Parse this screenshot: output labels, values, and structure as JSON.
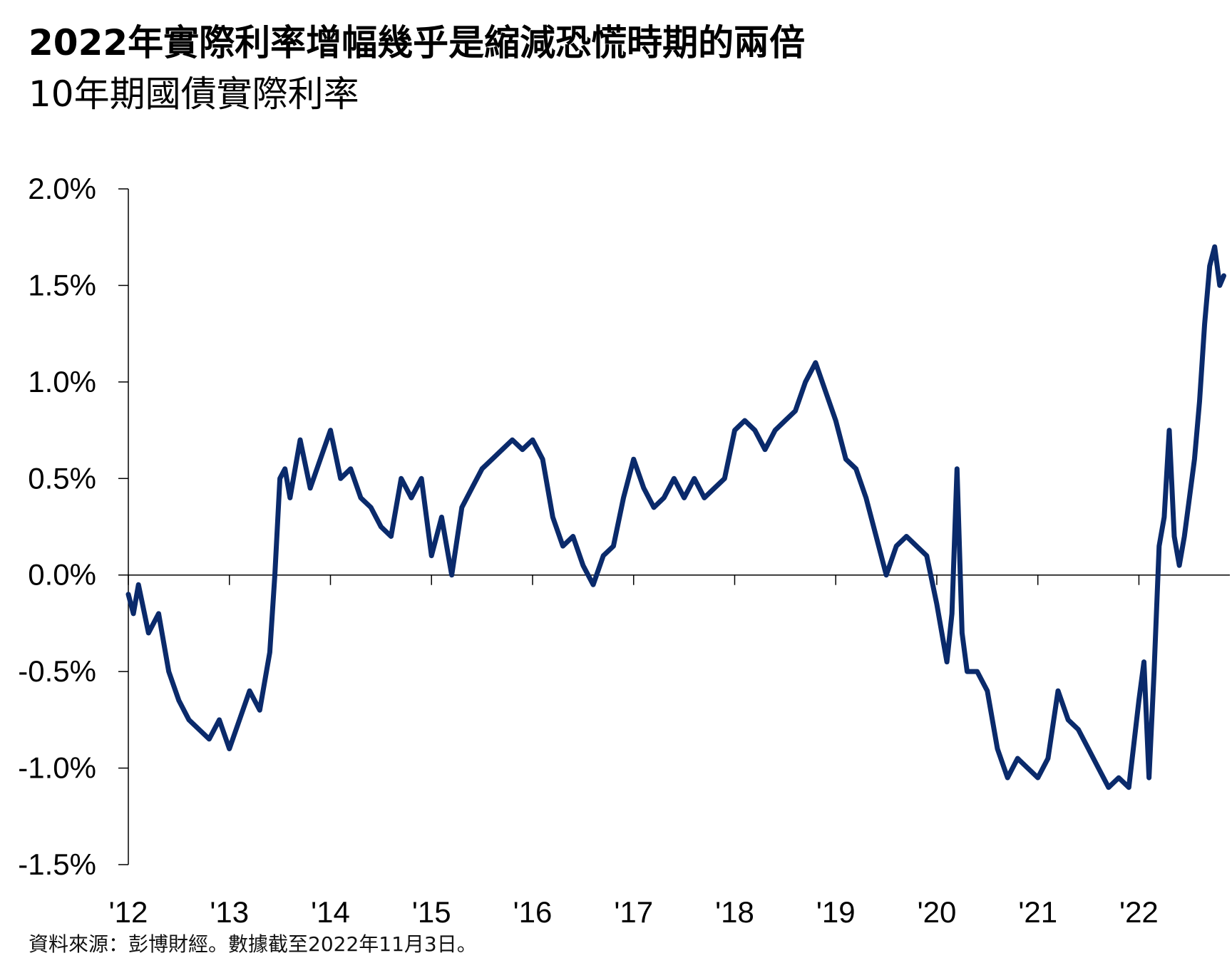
{
  "title": "2022年實際利率增幅幾乎是縮減恐慌時期的兩倍",
  "subtitle": "10年期國債實際利率",
  "source": "資料來源：彭博財經。數據截至2022年11月3日。",
  "colors": {
    "line": "#0a2a6b",
    "axis": "#000000"
  },
  "chart_data": {
    "type": "line",
    "title": "2022年實際利率增幅幾乎是縮減恐慌時期的兩倍",
    "subtitle": "10年期國債實際利率",
    "ylabel": "",
    "xlabel": "",
    "ylim": [
      -1.5,
      2.0
    ],
    "xlim": [
      2012.0,
      2022.9
    ],
    "y_ticks": [
      2.0,
      1.5,
      1.0,
      0.5,
      0.0,
      -0.5,
      -1.0,
      -1.5
    ],
    "y_tick_labels": [
      "2.0%",
      "1.5%",
      "1.0%",
      "0.5%",
      "0.0%",
      "-0.5%",
      "-1.0%",
      "-1.5%"
    ],
    "x_ticks": [
      2012,
      2013,
      2014,
      2015,
      2016,
      2017,
      2018,
      2019,
      2020,
      2021,
      2022
    ],
    "x_tick_labels": [
      "'12",
      "'13",
      "'14",
      "'15",
      "'16",
      "'17",
      "'18",
      "'19",
      "'20",
      "'21",
      "'22"
    ],
    "grid": false,
    "legend": "none",
    "series": [
      {
        "x": [
          2012.0,
          2012.05,
          2012.1,
          2012.2,
          2012.3,
          2012.4,
          2012.5,
          2012.6,
          2012.7,
          2012.8,
          2012.9,
          2013.0,
          2013.1,
          2013.2,
          2013.3,
          2013.4,
          2013.45,
          2013.5,
          2013.55,
          2013.6,
          2013.7,
          2013.8,
          2013.9,
          2014.0,
          2014.1,
          2014.2,
          2014.3,
          2014.4,
          2014.5,
          2014.6,
          2014.7,
          2014.8,
          2014.9,
          2015.0,
          2015.1,
          2015.2,
          2015.3,
          2015.4,
          2015.5,
          2015.6,
          2015.7,
          2015.8,
          2015.9,
          2016.0,
          2016.1,
          2016.2,
          2016.3,
          2016.4,
          2016.5,
          2016.6,
          2016.7,
          2016.8,
          2016.9,
          2017.0,
          2017.1,
          2017.2,
          2017.3,
          2017.4,
          2017.5,
          2017.6,
          2017.7,
          2017.8,
          2017.9,
          2018.0,
          2018.1,
          2018.2,
          2018.3,
          2018.4,
          2018.5,
          2018.6,
          2018.7,
          2018.8,
          2018.9,
          2019.0,
          2019.1,
          2019.2,
          2019.3,
          2019.4,
          2019.5,
          2019.6,
          2019.7,
          2019.8,
          2019.9,
          2020.0,
          2020.1,
          2020.15,
          2020.2,
          2020.25,
          2020.3,
          2020.4,
          2020.5,
          2020.6,
          2020.7,
          2020.8,
          2020.9,
          2021.0,
          2021.1,
          2021.2,
          2021.3,
          2021.4,
          2021.5,
          2021.6,
          2021.7,
          2021.8,
          2021.9,
          2022.0,
          2022.05,
          2022.1,
          2022.15,
          2022.2,
          2022.25,
          2022.3,
          2022.35,
          2022.4,
          2022.45,
          2022.5,
          2022.55,
          2022.6,
          2022.65,
          2022.7,
          2022.75,
          2022.8,
          2022.84
        ],
        "values": [
          -0.1,
          -0.2,
          -0.05,
          -0.3,
          -0.2,
          -0.5,
          -0.65,
          -0.75,
          -0.8,
          -0.85,
          -0.75,
          -0.9,
          -0.75,
          -0.6,
          -0.7,
          -0.4,
          0.0,
          0.5,
          0.55,
          0.4,
          0.7,
          0.45,
          0.6,
          0.75,
          0.5,
          0.55,
          0.4,
          0.35,
          0.25,
          0.2,
          0.5,
          0.4,
          0.5,
          0.1,
          0.3,
          0.0,
          0.35,
          0.45,
          0.55,
          0.6,
          0.65,
          0.7,
          0.65,
          0.7,
          0.6,
          0.3,
          0.15,
          0.2,
          0.05,
          -0.05,
          0.1,
          0.15,
          0.4,
          0.6,
          0.45,
          0.35,
          0.4,
          0.5,
          0.4,
          0.5,
          0.4,
          0.45,
          0.5,
          0.75,
          0.8,
          0.75,
          0.65,
          0.75,
          0.8,
          0.85,
          1.0,
          1.1,
          0.95,
          0.8,
          0.6,
          0.55,
          0.4,
          0.2,
          0.0,
          0.15,
          0.2,
          0.15,
          0.1,
          -0.15,
          -0.45,
          -0.2,
          0.55,
          -0.3,
          -0.5,
          -0.5,
          -0.6,
          -0.9,
          -1.05,
          -0.95,
          -1.0,
          -1.05,
          -0.95,
          -0.6,
          -0.75,
          -0.8,
          -0.9,
          -1.0,
          -1.1,
          -1.05,
          -1.1,
          -0.65,
          -0.45,
          -1.05,
          -0.5,
          0.15,
          0.3,
          0.75,
          0.2,
          0.05,
          0.2,
          0.4,
          0.6,
          0.9,
          1.3,
          1.6,
          1.7,
          1.5,
          1.55
        ]
      }
    ]
  }
}
